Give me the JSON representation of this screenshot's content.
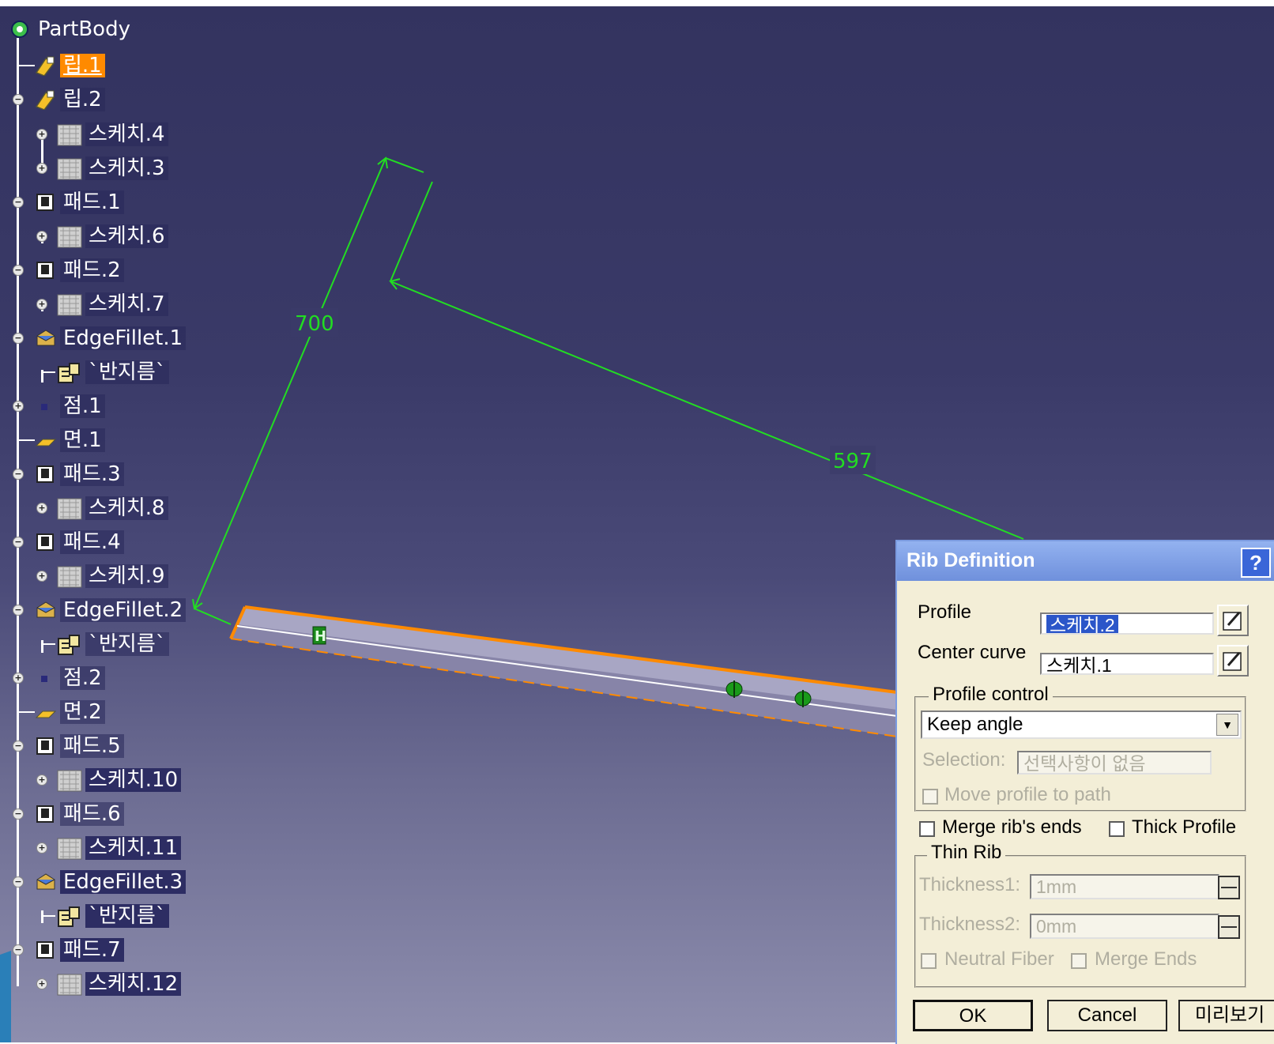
{
  "tree": {
    "root": "PartBody",
    "nodes": [
      {
        "label": "립.1",
        "icon": "rib-icon",
        "state": "selected"
      },
      {
        "label": "립.2",
        "icon": "rib-icon"
      },
      {
        "label": "스케치.4",
        "icon": "sketch-icon"
      },
      {
        "label": "스케치.3",
        "icon": "sketch-icon"
      },
      {
        "label": "패드.1",
        "icon": "pad-icon"
      },
      {
        "label": "스케치.6",
        "icon": "sketch-icon"
      },
      {
        "label": "패드.2",
        "icon": "pad-icon"
      },
      {
        "label": "스케치.7",
        "icon": "sketch-icon"
      },
      {
        "label": "EdgeFillet.1",
        "icon": "edge-fillet-icon"
      },
      {
        "label": "`반지름`",
        "icon": "parameter-icon"
      },
      {
        "label": "점.1",
        "icon": "point-icon"
      },
      {
        "label": "면.1",
        "icon": "plane-icon"
      },
      {
        "label": "패드.3",
        "icon": "pad-icon"
      },
      {
        "label": "스케치.8",
        "icon": "sketch-icon"
      },
      {
        "label": "패드.4",
        "icon": "pad-icon"
      },
      {
        "label": "스케치.9",
        "icon": "sketch-icon"
      },
      {
        "label": "EdgeFillet.2",
        "icon": "edge-fillet-icon"
      },
      {
        "label": "`반지름`",
        "icon": "parameter-icon"
      },
      {
        "label": "점.2",
        "icon": "point-icon"
      },
      {
        "label": "면.2",
        "icon": "plane-icon"
      },
      {
        "label": "패드.5",
        "icon": "pad-icon"
      },
      {
        "label": "스케치.10",
        "icon": "sketch-icon"
      },
      {
        "label": "패드.6",
        "icon": "pad-icon"
      },
      {
        "label": "스케치.11",
        "icon": "sketch-icon"
      },
      {
        "label": "EdgeFillet.3",
        "icon": "edge-fillet-icon"
      },
      {
        "label": "`반지름`",
        "icon": "parameter-icon"
      },
      {
        "label": "패드.7",
        "icon": "pad-icon"
      },
      {
        "label": "스케치.12",
        "icon": "sketch-icon"
      }
    ]
  },
  "viewport": {
    "dimension_1": "700",
    "dimension_2": "597",
    "constraint_marker": "H"
  },
  "dialog": {
    "title": "Rib Definition",
    "help": "?",
    "profile_label": "Profile",
    "profile_value": "스케치.2",
    "center_curve_label": "Center curve",
    "center_curve_value": "스케치.1",
    "profile_control_label": "Profile control",
    "profile_control_value": "Keep angle",
    "selection_label": "Selection:",
    "selection_value": "선택사항이 없음",
    "move_profile_label": "Move profile to path",
    "merge_ends_label": "Merge rib's ends",
    "thick_profile_label": "Thick Profile",
    "thin_rib_label": "Thin Rib",
    "thickness1_label": "Thickness1:",
    "thickness1_value": "1mm",
    "thickness2_label": "Thickness2:",
    "thickness2_value": "0mm",
    "neutral_fiber_label": "Neutral Fiber",
    "merge_ends2_label": "Merge Ends",
    "ok_label": "OK",
    "cancel_label": "Cancel",
    "preview_label": "미리보기"
  },
  "colors": {
    "selection": "#ff8a00",
    "dimension": "#22dd22",
    "dialog_bg": "#f3eed7",
    "titlebar": "#6f90dc"
  }
}
